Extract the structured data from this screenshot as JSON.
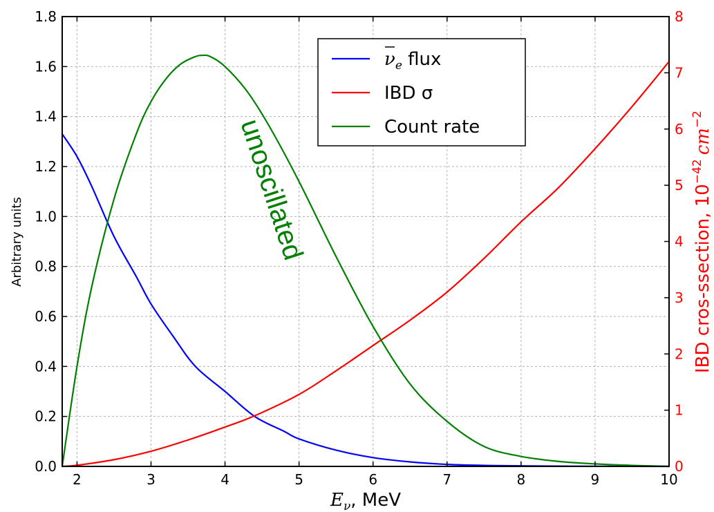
{
  "chart_data": {
    "type": "line",
    "title": "",
    "xlabel_symbol": "E",
    "xlabel_sub": "ν",
    "xlabel_unit": ", MeV",
    "ylabel_left": "Arbitrary units",
    "ylabel_right_text": "IBD cros-ssection, 10",
    "ylabel_right_sup": "−42",
    "ylabel_right_unit": "cm",
    "ylabel_right_unit_sup": "−2",
    "xlim": [
      1.8,
      10
    ],
    "ylim_left": [
      0,
      1.8
    ],
    "ylim_right": [
      0,
      8
    ],
    "grid": true,
    "legend_position": "top-center",
    "x_ticks": [
      "2",
      "3",
      "4",
      "5",
      "6",
      "7",
      "8",
      "9",
      "10"
    ],
    "y_left_ticks": [
      "0.0",
      "0.2",
      "0.4",
      "0.6",
      "0.8",
      "1.0",
      "1.2",
      "1.4",
      "1.6",
      "1.8"
    ],
    "y_right_ticks": [
      "0",
      "1",
      "2",
      "3",
      "4",
      "5",
      "6",
      "7",
      "8"
    ],
    "annotation": "unoscillated",
    "series": [
      {
        "key": "flux",
        "name_prefix": "ν",
        "name_sub": "e",
        "name_suffix": " flux",
        "color": "#0000ff",
        "axis": "left",
        "x": [
          1.8,
          2.0,
          2.2,
          2.5,
          2.8,
          3.0,
          3.3,
          3.6,
          4.0,
          4.4,
          4.8,
          5.0,
          5.5,
          6.0,
          6.5,
          7.0,
          7.5,
          8.0,
          9.0,
          10.0
        ],
        "y": [
          1.33,
          1.24,
          1.12,
          0.92,
          0.76,
          0.65,
          0.52,
          0.4,
          0.3,
          0.2,
          0.14,
          0.11,
          0.065,
          0.035,
          0.018,
          0.008,
          0.004,
          0.002,
          0.0005,
          0.0
        ]
      },
      {
        "key": "ibd",
        "name": "IBD σ",
        "color": "#ff0000",
        "axis": "right",
        "x": [
          1.8,
          2.0,
          2.5,
          3.0,
          3.5,
          4.0,
          4.4,
          5.0,
          5.5,
          6.0,
          6.5,
          7.0,
          7.5,
          8.0,
          8.5,
          9.0,
          9.5,
          10.0
        ],
        "y": [
          0.0,
          0.02,
          0.12,
          0.27,
          0.47,
          0.7,
          0.9,
          1.28,
          1.7,
          2.15,
          2.6,
          3.1,
          3.7,
          4.35,
          4.95,
          5.65,
          6.4,
          7.2
        ]
      },
      {
        "key": "count",
        "name": "Count rate",
        "color": "#008000",
        "axis": "left",
        "x": [
          1.8,
          2.0,
          2.2,
          2.5,
          2.8,
          3.0,
          3.2,
          3.4,
          3.6,
          3.7,
          3.8,
          4.0,
          4.3,
          4.6,
          5.0,
          5.5,
          6.0,
          6.5,
          7.0,
          7.5,
          8.0,
          8.5,
          9.0,
          9.5,
          10.0
        ],
        "y": [
          0.0,
          0.4,
          0.72,
          1.07,
          1.33,
          1.46,
          1.55,
          1.61,
          1.64,
          1.645,
          1.64,
          1.6,
          1.5,
          1.36,
          1.14,
          0.84,
          0.56,
          0.33,
          0.18,
          0.08,
          0.04,
          0.02,
          0.01,
          0.004,
          0.0
        ]
      }
    ]
  }
}
